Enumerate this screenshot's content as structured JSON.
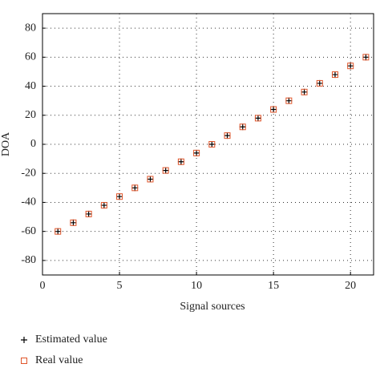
{
  "chart_data": {
    "type": "scatter",
    "x_label": "Signal sources",
    "y_label": "DOA",
    "x": [
      1,
      2,
      3,
      4,
      5,
      6,
      7,
      8,
      9,
      10,
      11,
      12,
      13,
      14,
      15,
      16,
      17,
      18,
      19,
      20,
      21
    ],
    "series": [
      {
        "name": "Estimated value",
        "color": "#000000",
        "marker": "plus",
        "values": [
          -60,
          -54,
          -48,
          -42,
          -36,
          -30,
          -24,
          -18,
          -12,
          -6,
          0,
          6,
          12,
          18,
          24,
          30,
          36,
          42,
          48,
          54,
          60
        ]
      },
      {
        "name": "Real value",
        "color": "#e0552a",
        "marker": "square",
        "values": [
          -60,
          -54,
          -48,
          -42,
          -36,
          -30,
          -24,
          -18,
          -12,
          -6,
          0,
          6,
          12,
          18,
          24,
          30,
          36,
          42,
          48,
          54,
          60
        ]
      }
    ],
    "xlim": [
      0,
      21.5
    ],
    "ylim": [
      -90,
      90
    ],
    "xticks": [
      0,
      5,
      10,
      15,
      20
    ],
    "yticks": [
      -80,
      -60,
      -40,
      -20,
      0,
      20,
      40,
      60,
      80
    ],
    "grid": true,
    "legend": "below"
  }
}
